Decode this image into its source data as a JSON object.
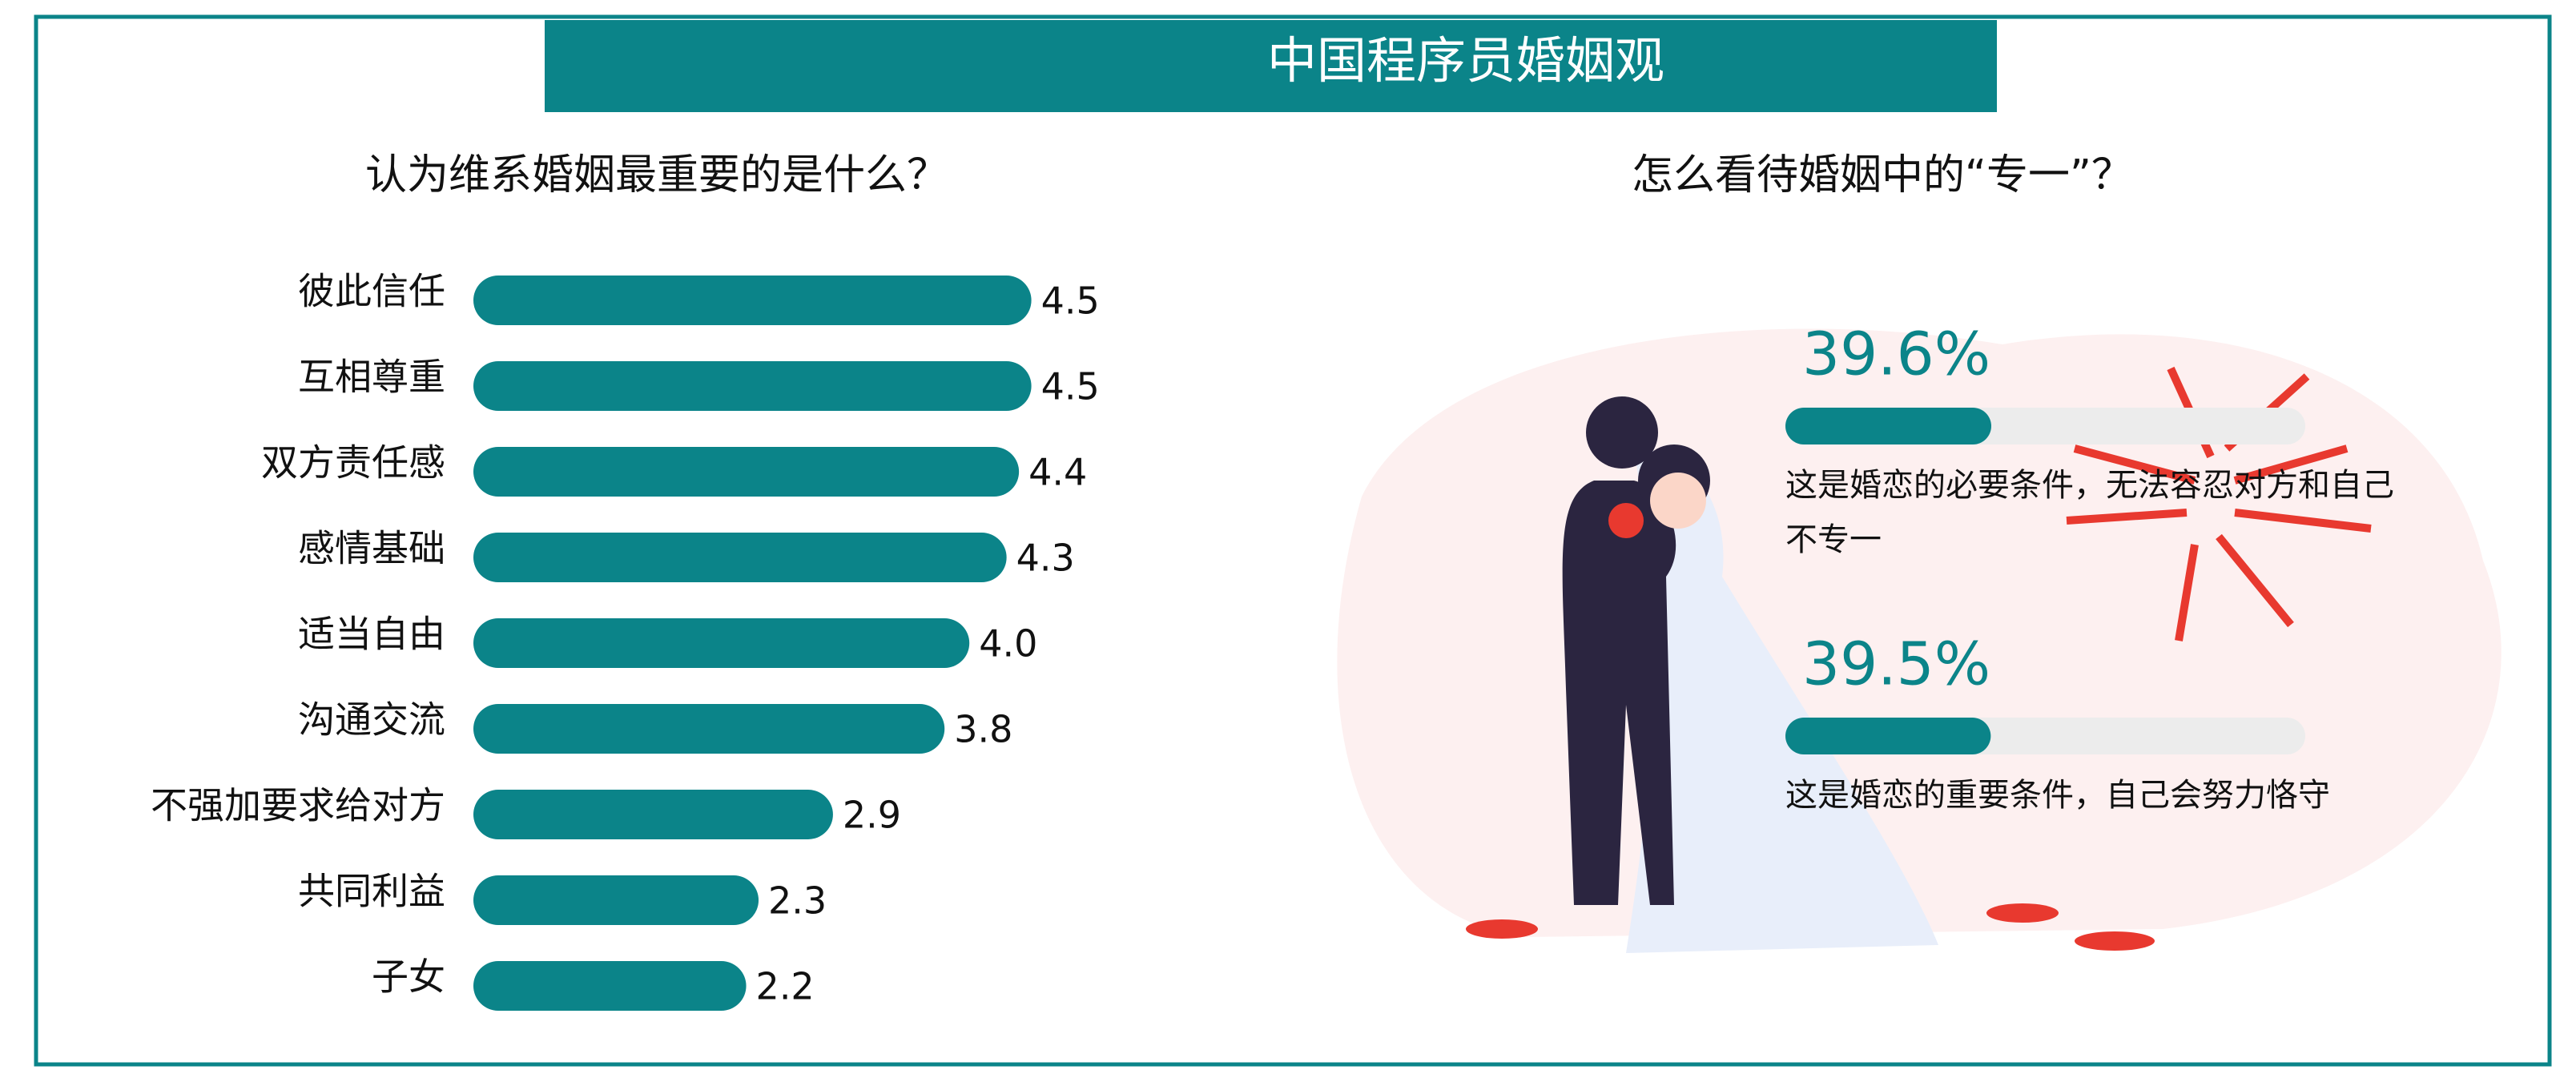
{
  "title": "中国程序员婚姻观",
  "chart_data": [
    {
      "type": "bar",
      "title": "认为维系婚姻最重要的是什么？",
      "categories": [
        "彼此信任",
        "互相尊重",
        "双方责任感",
        "感情基础",
        "适当自由",
        "沟通交流",
        "不强加要求给对方",
        "共同利益",
        "子女"
      ],
      "values": [
        4.5,
        4.5,
        4.4,
        4.3,
        4.0,
        3.8,
        2.9,
        2.3,
        2.2
      ],
      "value_labels": [
        "4.5",
        "4.5",
        "4.4",
        "4.3",
        "4.0",
        "3.8",
        "2.9",
        "2.3",
        "2.2"
      ],
      "xlim": [
        0,
        5
      ],
      "color": "#0b8489"
    },
    {
      "type": "progress",
      "title": "怎么看待婚姻中的“专一”？",
      "categories": [
        "这是婚恋的必要条件，无法容忍对方和自己不专一",
        "这是婚恋的重要条件，自己会努力恪守"
      ],
      "values": [
        39.6,
        39.5
      ],
      "value_labels": [
        "39.6%",
        "39.5%"
      ],
      "xlim": [
        0,
        100
      ],
      "color": "#0b8489",
      "track_color": "#ececec"
    }
  ]
}
